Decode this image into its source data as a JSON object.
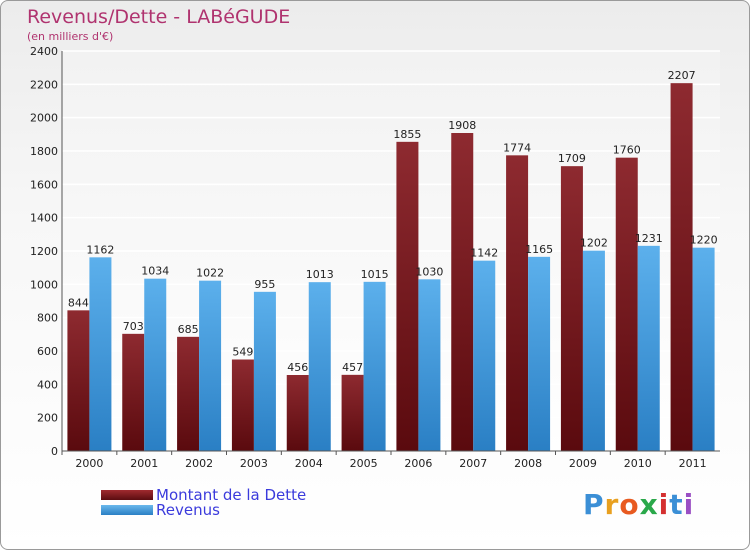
{
  "header": {
    "title": "Revenus/Dette - LABéGUDE",
    "subtitle": "(en milliers d'€)"
  },
  "chart_data": {
    "type": "bar",
    "categories": [
      "2000",
      "2001",
      "2002",
      "2003",
      "2004",
      "2005",
      "2006",
      "2007",
      "2008",
      "2009",
      "2010",
      "2011"
    ],
    "series": [
      {
        "name": "Montant de la Dette",
        "values": [
          844,
          703,
          685,
          549,
          456,
          457,
          1855,
          1908,
          1774,
          1709,
          1760,
          2207
        ],
        "color": "#7a1a1e"
      },
      {
        "name": "Revenus",
        "values": [
          1162,
          1034,
          1022,
          955,
          1013,
          1015,
          1030,
          1142,
          1165,
          1202,
          1231,
          1220
        ],
        "color": "#3f9ee0"
      }
    ],
    "ylim": [
      0,
      2400
    ],
    "yticks": [
      0,
      200,
      400,
      600,
      800,
      1000,
      1200,
      1400,
      1600,
      1800,
      2000,
      2200,
      2400
    ],
    "grid": true,
    "legend_position": "bottom-left"
  },
  "legend": {
    "debt_label": "Montant de la Dette",
    "revenue_label": "Revenus"
  },
  "logo": {
    "letters": [
      "P",
      "r",
      "o",
      "x",
      "i",
      "t",
      "i"
    ],
    "colors": [
      "#3b8fd6",
      "#e8a020",
      "#e85a20",
      "#2aa84a",
      "#d43030",
      "#3b8fd6",
      "#9a4fc4"
    ]
  }
}
